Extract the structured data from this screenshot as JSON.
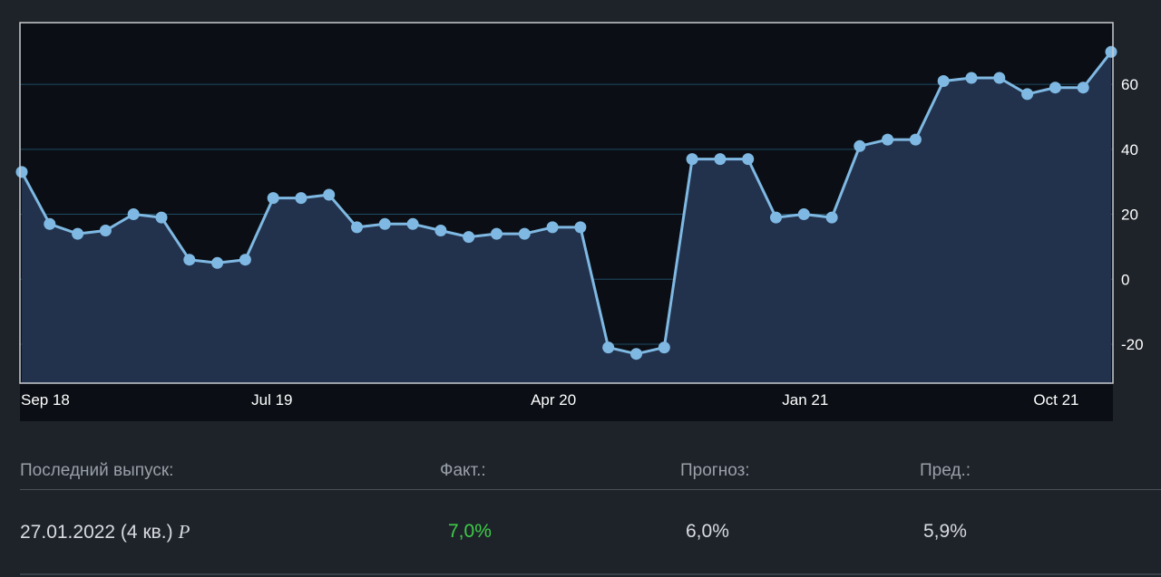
{
  "chart_data": {
    "type": "area",
    "x_tick_labels": [
      "Sep 18",
      "Jul 19",
      "Apr 20",
      "Jan 21",
      "Oct 21"
    ],
    "y_ticks": [
      60,
      40,
      20,
      0,
      -20
    ],
    "ylim": [
      -32,
      79
    ],
    "grid": true,
    "colors": {
      "line": "#7fb9e3",
      "fill": "#22324d",
      "plot_bg": "#0b0f15",
      "grid": "#1d4a63"
    },
    "values": [
      33,
      17,
      14,
      15,
      20,
      19,
      6,
      5,
      6,
      25,
      25,
      26,
      16,
      17,
      17,
      15,
      13,
      14,
      14,
      16,
      16,
      -21,
      -23,
      -21,
      37,
      37,
      37,
      19,
      20,
      19,
      41,
      43,
      43,
      61,
      62,
      62,
      57,
      59,
      59,
      70
    ]
  },
  "stats": {
    "headers": {
      "last_release": "Последний выпуск:",
      "actual": "Факт.:",
      "forecast": "Прогноз:",
      "previous": "Пред.:"
    },
    "values": {
      "date": "27.01.2022 (4 кв.)",
      "preliminary_mark": "P",
      "actual": "7,0%",
      "forecast": "6,0%",
      "previous": "5,9%"
    },
    "colors": {
      "actual": "#3ecc47"
    }
  }
}
